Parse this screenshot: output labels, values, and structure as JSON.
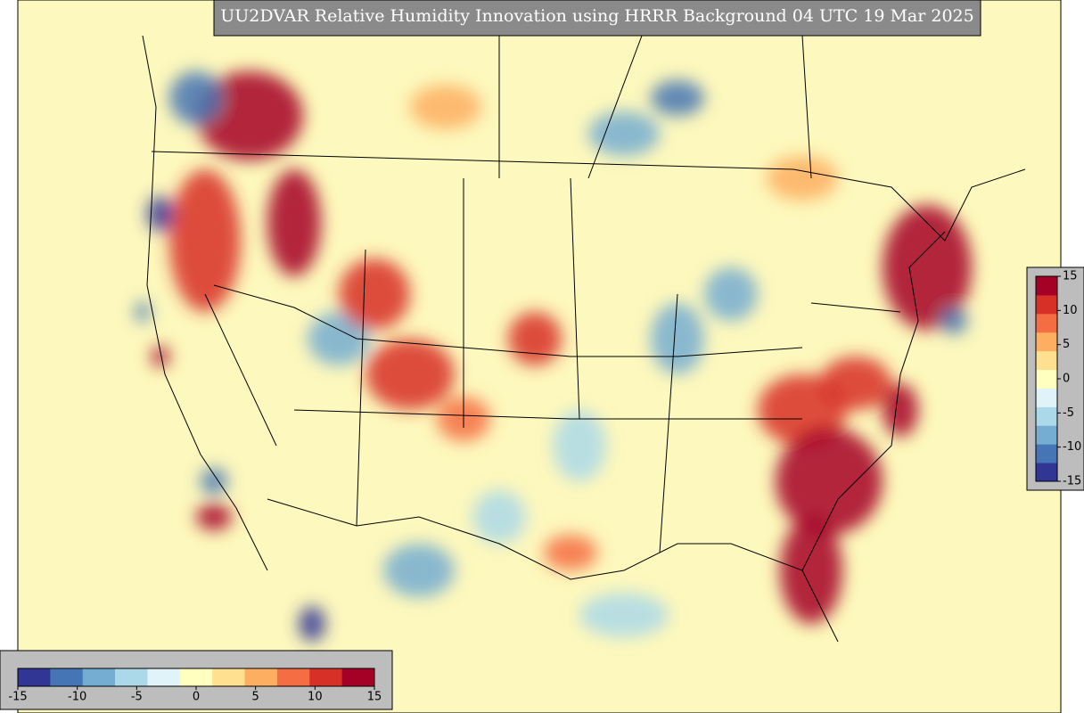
{
  "title": "UU2DVAR Relative Humidity Innovation using HRRR Background 04 UTC 19 Mar 2025",
  "colorbar": {
    "range": [
      -15,
      15
    ],
    "ticks": [
      -15,
      -10,
      -5,
      0,
      5,
      10,
      15
    ],
    "colors": [
      "#313695",
      "#4575b4",
      "#74add1",
      "#abd9e9",
      "#e0f3f8",
      "#ffffbf",
      "#fee090",
      "#fdae61",
      "#f46d43",
      "#d73027",
      "#a50026"
    ]
  },
  "colorbar_right": {
    "range": [
      -15,
      15
    ],
    "ticks": [
      15,
      10,
      5,
      0,
      -5,
      -10,
      -15
    ]
  }
}
